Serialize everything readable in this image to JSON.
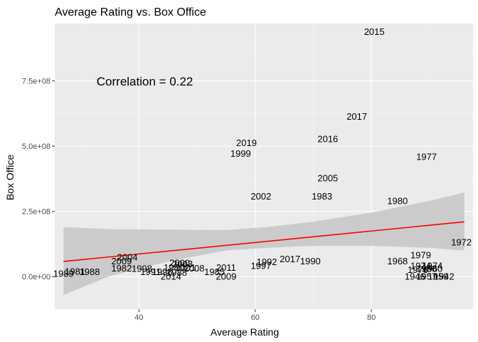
{
  "chart_data": {
    "type": "scatter",
    "title": "Average Rating vs. Box Office",
    "xlabel": "Average Rating",
    "ylabel": "Box Office",
    "xlim": [
      25.5,
      97.5
    ],
    "ylim": [
      -125000000,
      970000000
    ],
    "xticks": [
      {
        "value": 40,
        "label": "40"
      },
      {
        "value": 60,
        "label": "60"
      },
      {
        "value": 80,
        "label": "80"
      }
    ],
    "yticks": [
      {
        "value": 0,
        "label": "0.0e+00"
      },
      {
        "value": 250000000,
        "label": "2.5e+08"
      },
      {
        "value": 500000000,
        "label": "5.0e+08"
      },
      {
        "value": 750000000,
        "label": "7.5e+08"
      }
    ],
    "grid": true,
    "annotation": {
      "text": "Correlation = 0.22",
      "x": 41,
      "y": 748000000
    },
    "fit": {
      "method": "linear",
      "color": "#ff0000",
      "band_color": "#c8c8c8",
      "line": [
        [
          27,
          58000000
        ],
        [
          96,
          210000000
        ]
      ],
      "lower": [
        [
          27,
          -70000000
        ],
        [
          35,
          2000000
        ],
        [
          45,
          58000000
        ],
        [
          55,
          100000000
        ],
        [
          62,
          110000000
        ],
        [
          70,
          118000000
        ],
        [
          80,
          118000000
        ],
        [
          90,
          110000000
        ],
        [
          96,
          100000000
        ]
      ],
      "upper": [
        [
          27,
          190000000
        ],
        [
          35,
          182000000
        ],
        [
          45,
          180000000
        ],
        [
          55,
          178000000
        ],
        [
          62,
          190000000
        ],
        [
          70,
          210000000
        ],
        [
          80,
          245000000
        ],
        [
          90,
          290000000
        ],
        [
          96,
          322000000
        ]
      ]
    },
    "points": [
      {
        "x": 80.5,
        "y": 938000000,
        "label": "2015"
      },
      {
        "x": 77.5,
        "y": 613000000,
        "label": "2017"
      },
      {
        "x": 72.5,
        "y": 527000000,
        "label": "2016"
      },
      {
        "x": 58.5,
        "y": 512000000,
        "label": "2019"
      },
      {
        "x": 57.5,
        "y": 472000000,
        "label": "1999"
      },
      {
        "x": 89.5,
        "y": 460000000,
        "label": "1977"
      },
      {
        "x": 72.5,
        "y": 377000000,
        "label": "2005"
      },
      {
        "x": 61.0,
        "y": 308000000,
        "label": "2002"
      },
      {
        "x": 71.5,
        "y": 308000000,
        "label": "1983"
      },
      {
        "x": 84.5,
        "y": 290000000,
        "label": "1980"
      },
      {
        "x": 95.5,
        "y": 132000000,
        "label": "1972"
      },
      {
        "x": 38.0,
        "y": 75000000,
        "label": "2004"
      },
      {
        "x": 37.0,
        "y": 60000000,
        "label": "2009"
      },
      {
        "x": 66.0,
        "y": 67000000,
        "label": "2017"
      },
      {
        "x": 69.5,
        "y": 60000000,
        "label": "1990"
      },
      {
        "x": 88.5,
        "y": 82000000,
        "label": "1979"
      },
      {
        "x": 84.5,
        "y": 60000000,
        "label": "1968"
      },
      {
        "x": 62.0,
        "y": 56000000,
        "label": "1992"
      },
      {
        "x": 61.0,
        "y": 42000000,
        "label": "1997"
      },
      {
        "x": 47.0,
        "y": 52000000,
        "label": "2000"
      },
      {
        "x": 47.5,
        "y": 48000000,
        "label": "2003"
      },
      {
        "x": 46.0,
        "y": 35000000,
        "label": "1980"
      },
      {
        "x": 48.0,
        "y": 35000000,
        "label": "2001"
      },
      {
        "x": 49.5,
        "y": 32000000,
        "label": "2008"
      },
      {
        "x": 55.0,
        "y": 35000000,
        "label": "2011"
      },
      {
        "x": 37.0,
        "y": 32000000,
        "label": "1982"
      },
      {
        "x": 40.5,
        "y": 30000000,
        "label": "1998"
      },
      {
        "x": 88.5,
        "y": 42000000,
        "label": "1974"
      },
      {
        "x": 90.5,
        "y": 42000000,
        "label": "1974"
      },
      {
        "x": 88.0,
        "y": 27000000,
        "label": "1976"
      },
      {
        "x": 89.5,
        "y": 30000000,
        "label": "1960"
      },
      {
        "x": 90.5,
        "y": 30000000,
        "label": "1960"
      },
      {
        "x": 29.0,
        "y": 20000000,
        "label": "1981"
      },
      {
        "x": 31.5,
        "y": 18000000,
        "label": "1988"
      },
      {
        "x": 42.0,
        "y": 18000000,
        "label": "1991"
      },
      {
        "x": 44.0,
        "y": 18000000,
        "label": "1998"
      },
      {
        "x": 46.5,
        "y": 15000000,
        "label": "1988"
      },
      {
        "x": 53.0,
        "y": 18000000,
        "label": "1985"
      },
      {
        "x": 27.0,
        "y": 12000000,
        "label": "1989"
      },
      {
        "x": 45.5,
        "y": 0,
        "label": "2014"
      },
      {
        "x": 55.0,
        "y": 0,
        "label": "2009"
      },
      {
        "x": 87.5,
        "y": 0,
        "label": "1946"
      },
      {
        "x": 89.5,
        "y": 0,
        "label": "1957"
      },
      {
        "x": 91.5,
        "y": 0,
        "label": "1959"
      },
      {
        "x": 92.5,
        "y": 0,
        "label": "1942"
      }
    ]
  }
}
